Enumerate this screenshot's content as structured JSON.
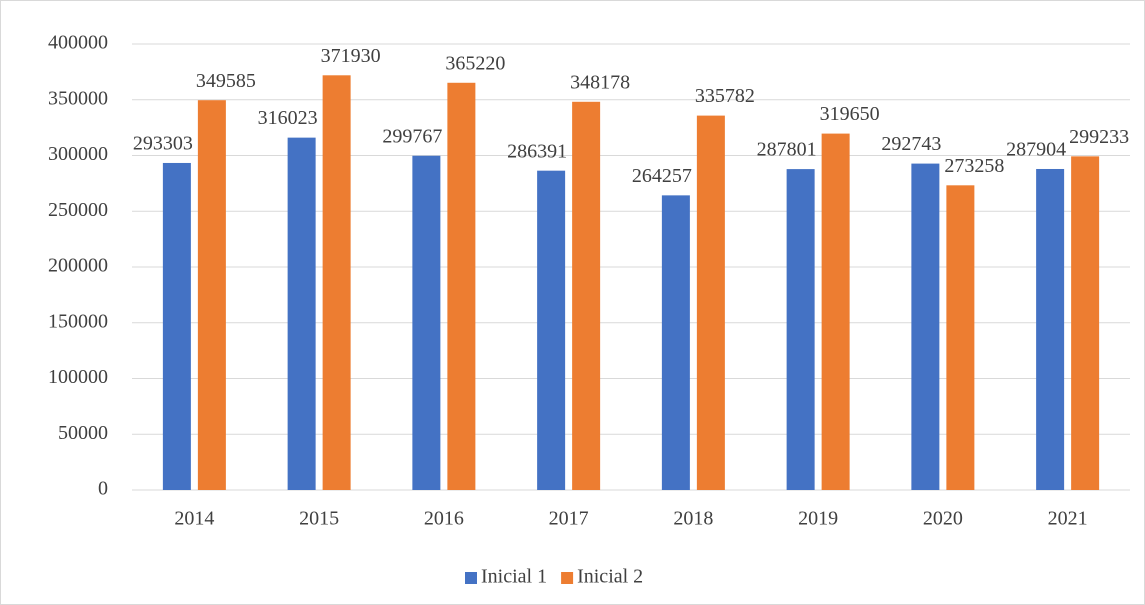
{
  "chart_data": {
    "type": "bar",
    "categories": [
      "2014",
      "2015",
      "2016",
      "2017",
      "2018",
      "2019",
      "2020",
      "2021"
    ],
    "series": [
      {
        "name": "Inicial 1",
        "color": "#4472c4",
        "values": [
          293303,
          316023,
          299767,
          286391,
          264257,
          287801,
          292743,
          287904
        ]
      },
      {
        "name": "Inicial 2",
        "color": "#ed7d31",
        "values": [
          349585,
          371930,
          365220,
          348178,
          335782,
          319650,
          273258,
          299233
        ]
      }
    ],
    "ylim": [
      0,
      400000
    ],
    "yticks": [
      0,
      50000,
      100000,
      150000,
      200000,
      250000,
      300000,
      350000,
      400000
    ],
    "grid": true,
    "legend": "bottom"
  }
}
